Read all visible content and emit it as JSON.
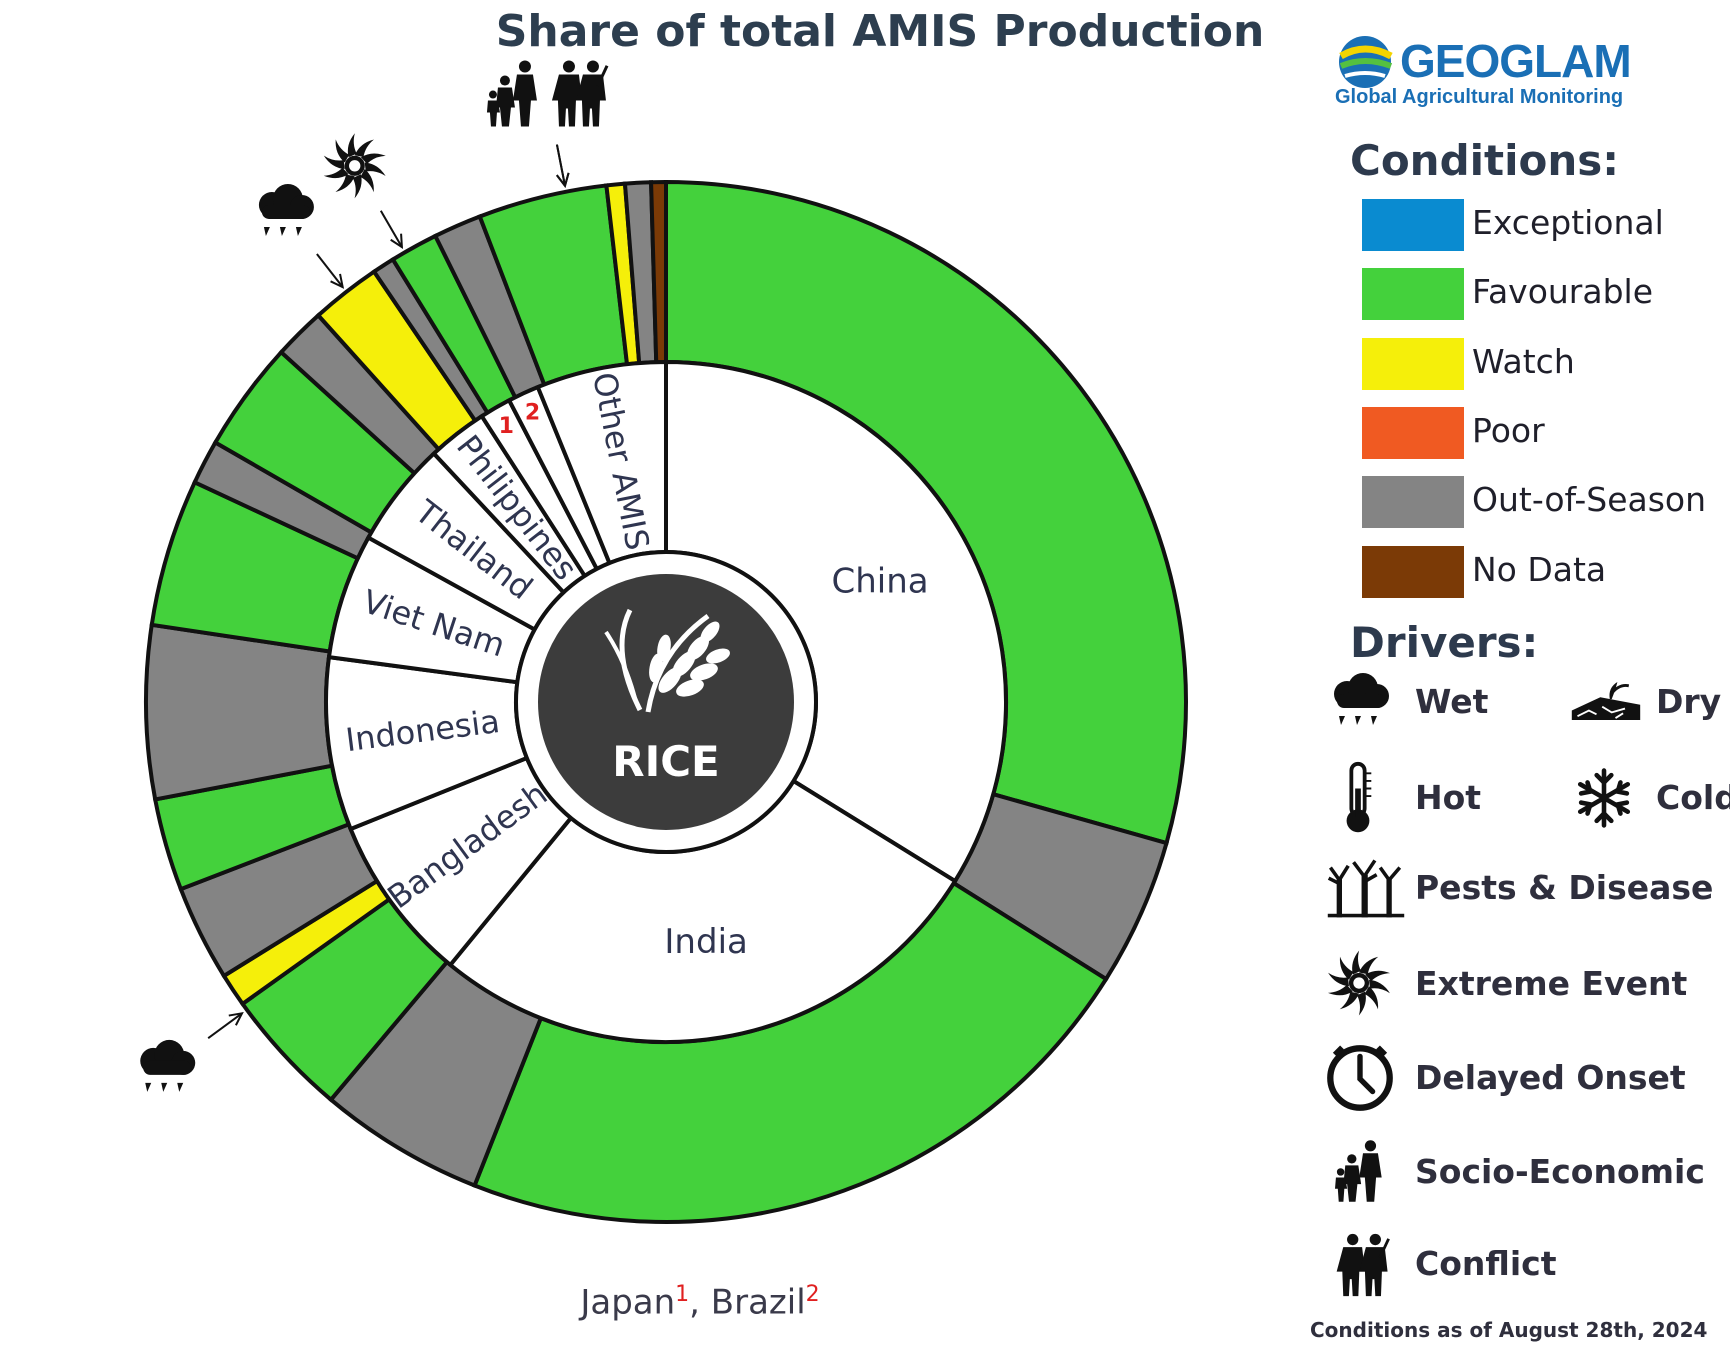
{
  "chart_data": {
    "type": "pie",
    "title": "Share of total AMIS Production",
    "center_label": "RICE",
    "inner_ring": [
      {
        "label": "China",
        "share": 29.7
      },
      {
        "label": "India",
        "share": 23.8
      },
      {
        "label": "Bangladesh",
        "share": 7.0
      },
      {
        "label": "Indonesia",
        "share": 7.2
      },
      {
        "label": "Viet Nam",
        "share": 5.2
      },
      {
        "label": "Thailand",
        "share": 4.4
      },
      {
        "label": "Philippines",
        "share": 2.5
      },
      {
        "label": "1",
        "share": 1.3
      },
      {
        "label": "2",
        "share": 1.3
      },
      {
        "label": "Other AMIS",
        "share": 5.4
      }
    ],
    "outer_ring": [
      {
        "country": "China",
        "condition": "Favourable",
        "share": 25.7
      },
      {
        "country": "China",
        "condition": "Out-of-Season",
        "share": 4.0
      },
      {
        "country": "India",
        "condition": "Favourable",
        "share": 19.3
      },
      {
        "country": "India",
        "condition": "Out-of-Season",
        "share": 4.5
      },
      {
        "country": "Bangladesh",
        "condition": "Favourable",
        "share": 3.5
      },
      {
        "country": "Bangladesh",
        "condition": "Watch",
        "share": 0.9
      },
      {
        "country": "Bangladesh",
        "condition": "Out-of-Season",
        "share": 2.6
      },
      {
        "country": "Indonesia",
        "condition": "Favourable",
        "share": 2.5
      },
      {
        "country": "Indonesia",
        "condition": "Out-of-Season",
        "share": 4.7
      },
      {
        "country": "Viet Nam",
        "condition": "Favourable",
        "share": 4.0
      },
      {
        "country": "Viet Nam",
        "condition": "Out-of-Season",
        "share": 1.2
      },
      {
        "country": "Thailand",
        "condition": "Favourable",
        "share": 3.0
      },
      {
        "country": "Thailand",
        "condition": "Out-of-Season",
        "share": 1.4
      },
      {
        "country": "Philippines",
        "condition": "Watch",
        "share": 1.9
      },
      {
        "country": "Philippines",
        "condition": "Out-of-Season",
        "share": 0.6
      },
      {
        "country": "Japan",
        "condition": "Favourable",
        "share": 1.3
      },
      {
        "country": "Brazil",
        "condition": "Out-of-Season",
        "share": 1.3
      },
      {
        "country": "Other AMIS",
        "condition": "Favourable",
        "share": 3.5
      },
      {
        "country": "Other AMIS",
        "condition": "Watch",
        "share": 0.5
      },
      {
        "country": "Other AMIS",
        "condition": "Out-of-Season",
        "share": 0.7
      },
      {
        "country": "Other AMIS",
        "condition": "No Data",
        "share": 0.4
      }
    ],
    "driver_annotations": [
      {
        "country": "Bangladesh",
        "driver": "Wet"
      },
      {
        "country": "Philippines",
        "driver": "Wet"
      },
      {
        "country": "Japan",
        "driver": "Extreme Event"
      },
      {
        "country": "Other AMIS",
        "driver": "Socio-Economic"
      },
      {
        "country": "Other AMIS",
        "driver": "Conflict"
      }
    ],
    "footnote": {
      "items": [
        {
          "name": "Japan",
          "marker": "1"
        },
        {
          "name": "Brazil",
          "marker": "2"
        }
      ]
    }
  },
  "logo": {
    "name": "GEOGLAM",
    "subtitle": "Global Agricultural Monitoring"
  },
  "legend": {
    "conditions_title": "Conditions:",
    "conditions": [
      {
        "label": "Exceptional",
        "color": "#0a8bd0"
      },
      {
        "label": "Favourable",
        "color": "#44d13c"
      },
      {
        "label": "Watch",
        "color": "#f5ef0a"
      },
      {
        "label": "Poor",
        "color": "#f05a22"
      },
      {
        "label": "Out-of-Season",
        "color": "#848484"
      },
      {
        "label": "No Data",
        "color": "#7b3a06"
      }
    ],
    "drivers_title": "Drivers:",
    "drivers": [
      {
        "label": "Wet",
        "icon": "rain-cloud-icon"
      },
      {
        "label": "Dry",
        "icon": "dry-soil-icon"
      },
      {
        "label": "Hot",
        "icon": "thermometer-icon"
      },
      {
        "label": "Cold",
        "icon": "snowflake-icon"
      },
      {
        "label": "Pests & Disease",
        "icon": "pests-icon"
      },
      {
        "label": "Extreme Event",
        "icon": "cyclone-icon"
      },
      {
        "label": "Delayed Onset",
        "icon": "clock-icon"
      },
      {
        "label": "Socio-Economic",
        "icon": "family-icon"
      },
      {
        "label": "Conflict",
        "icon": "soldiers-icon"
      }
    ]
  },
  "as_of": "Conditions as of August 28th, 2024"
}
